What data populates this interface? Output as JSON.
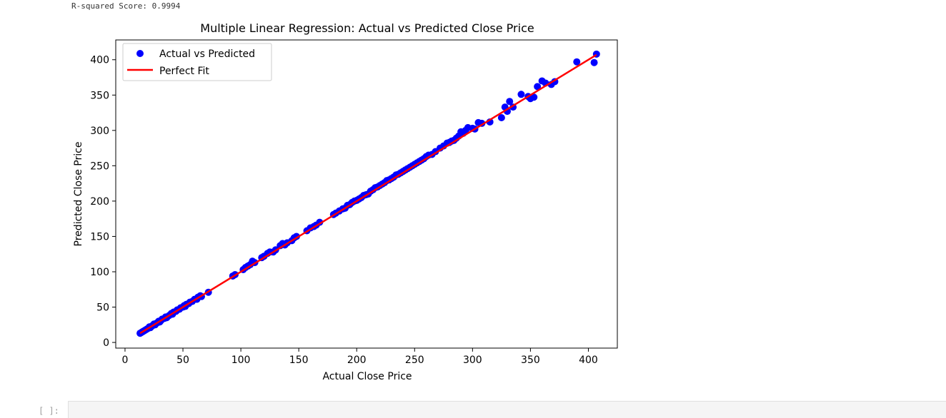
{
  "output": {
    "text": "R-squared Score: 0.9994"
  },
  "cell": {
    "prompt": "[ ]:"
  },
  "chart_data": {
    "type": "scatter",
    "title": "Multiple Linear Regression: Actual vs Predicted Close Price",
    "xlabel": "Actual Close Price",
    "ylabel": "Predicted Close Price",
    "xlim": [
      -8,
      425
    ],
    "ylim": [
      -8,
      428
    ],
    "xticks": [
      0,
      50,
      100,
      150,
      200,
      250,
      300,
      350,
      400
    ],
    "yticks": [
      0,
      50,
      100,
      150,
      200,
      250,
      300,
      350,
      400
    ],
    "grid": false,
    "legend": {
      "placement": "top-left",
      "entries": [
        "Actual vs Predicted",
        "Perfect Fit"
      ]
    },
    "colors": {
      "points": "#0000ff",
      "line": "#ff0000"
    },
    "series": [
      {
        "name": "Actual vs Predicted",
        "kind": "scatter",
        "points": [
          [
            13,
            13
          ],
          [
            14,
            14
          ],
          [
            15,
            15
          ],
          [
            16,
            16
          ],
          [
            17,
            17
          ],
          [
            18,
            18
          ],
          [
            19,
            19
          ],
          [
            20,
            20
          ],
          [
            21,
            22
          ],
          [
            22,
            21
          ],
          [
            23,
            23
          ],
          [
            24,
            24
          ],
          [
            25,
            26
          ],
          [
            26,
            25
          ],
          [
            27,
            27
          ],
          [
            28,
            28
          ],
          [
            29,
            30
          ],
          [
            30,
            29
          ],
          [
            31,
            31
          ],
          [
            32,
            33
          ],
          [
            34,
            34
          ],
          [
            35,
            36
          ],
          [
            36,
            35
          ],
          [
            38,
            38
          ],
          [
            40,
            41
          ],
          [
            41,
            40
          ],
          [
            42,
            43
          ],
          [
            44,
            44
          ],
          [
            45,
            46
          ],
          [
            47,
            47
          ],
          [
            48,
            49
          ],
          [
            50,
            50
          ],
          [
            51,
            52
          ],
          [
            52,
            51
          ],
          [
            53,
            54
          ],
          [
            55,
            55
          ],
          [
            56,
            57
          ],
          [
            58,
            58
          ],
          [
            60,
            61
          ],
          [
            62,
            61
          ],
          [
            63,
            64
          ],
          [
            65,
            66
          ],
          [
            66,
            65
          ],
          [
            72,
            71
          ],
          [
            93,
            94
          ],
          [
            95,
            96
          ],
          [
            102,
            103
          ],
          [
            104,
            106
          ],
          [
            106,
            108
          ],
          [
            108,
            110
          ],
          [
            110,
            115
          ],
          [
            112,
            113
          ],
          [
            118,
            120
          ],
          [
            120,
            122
          ],
          [
            123,
            126
          ],
          [
            125,
            128
          ],
          [
            128,
            128
          ],
          [
            130,
            131
          ],
          [
            134,
            137
          ],
          [
            136,
            140
          ],
          [
            138,
            138
          ],
          [
            140,
            141
          ],
          [
            144,
            144
          ],
          [
            146,
            148
          ],
          [
            148,
            150
          ],
          [
            157,
            158
          ],
          [
            160,
            162
          ],
          [
            163,
            164
          ],
          [
            165,
            166
          ],
          [
            168,
            170
          ],
          [
            180,
            181
          ],
          [
            182,
            183
          ],
          [
            185,
            186
          ],
          [
            188,
            189
          ],
          [
            190,
            190
          ],
          [
            192,
            194
          ],
          [
            194,
            195
          ],
          [
            196,
            198
          ],
          [
            198,
            200
          ],
          [
            200,
            201
          ],
          [
            202,
            203
          ],
          [
            204,
            205
          ],
          [
            206,
            208
          ],
          [
            208,
            209
          ],
          [
            210,
            210
          ],
          [
            212,
            214
          ],
          [
            214,
            216
          ],
          [
            216,
            219
          ],
          [
            218,
            220
          ],
          [
            220,
            222
          ],
          [
            222,
            224
          ],
          [
            224,
            226
          ],
          [
            226,
            229
          ],
          [
            228,
            230
          ],
          [
            230,
            232
          ],
          [
            232,
            234
          ],
          [
            234,
            237
          ],
          [
            236,
            238
          ],
          [
            238,
            240
          ],
          [
            240,
            242
          ],
          [
            242,
            244
          ],
          [
            244,
            246
          ],
          [
            246,
            248
          ],
          [
            248,
            250
          ],
          [
            250,
            252
          ],
          [
            252,
            254
          ],
          [
            254,
            256
          ],
          [
            256,
            258
          ],
          [
            258,
            260
          ],
          [
            260,
            263
          ],
          [
            262,
            265
          ],
          [
            265,
            266
          ],
          [
            268,
            270
          ],
          [
            272,
            275
          ],
          [
            275,
            278
          ],
          [
            278,
            282
          ],
          [
            280,
            283
          ],
          [
            282,
            285
          ],
          [
            284,
            286
          ],
          [
            286,
            289
          ],
          [
            288,
            292
          ],
          [
            290,
            298
          ],
          [
            292,
            296
          ],
          [
            294,
            300
          ],
          [
            296,
            304
          ],
          [
            300,
            303
          ],
          [
            302,
            302
          ],
          [
            305,
            311
          ],
          [
            308,
            310
          ],
          [
            315,
            312
          ],
          [
            325,
            318
          ],
          [
            328,
            333
          ],
          [
            330,
            327
          ],
          [
            332,
            341
          ],
          [
            335,
            333
          ],
          [
            342,
            351
          ],
          [
            348,
            348
          ],
          [
            350,
            345
          ],
          [
            353,
            347
          ],
          [
            356,
            362
          ],
          [
            360,
            370
          ],
          [
            363,
            367
          ],
          [
            368,
            365
          ],
          [
            371,
            369
          ],
          [
            390,
            397
          ],
          [
            405,
            396
          ],
          [
            407,
            408
          ]
        ]
      },
      {
        "name": "Perfect Fit",
        "kind": "line",
        "points": [
          [
            13,
            13
          ],
          [
            407,
            407
          ]
        ]
      }
    ]
  }
}
